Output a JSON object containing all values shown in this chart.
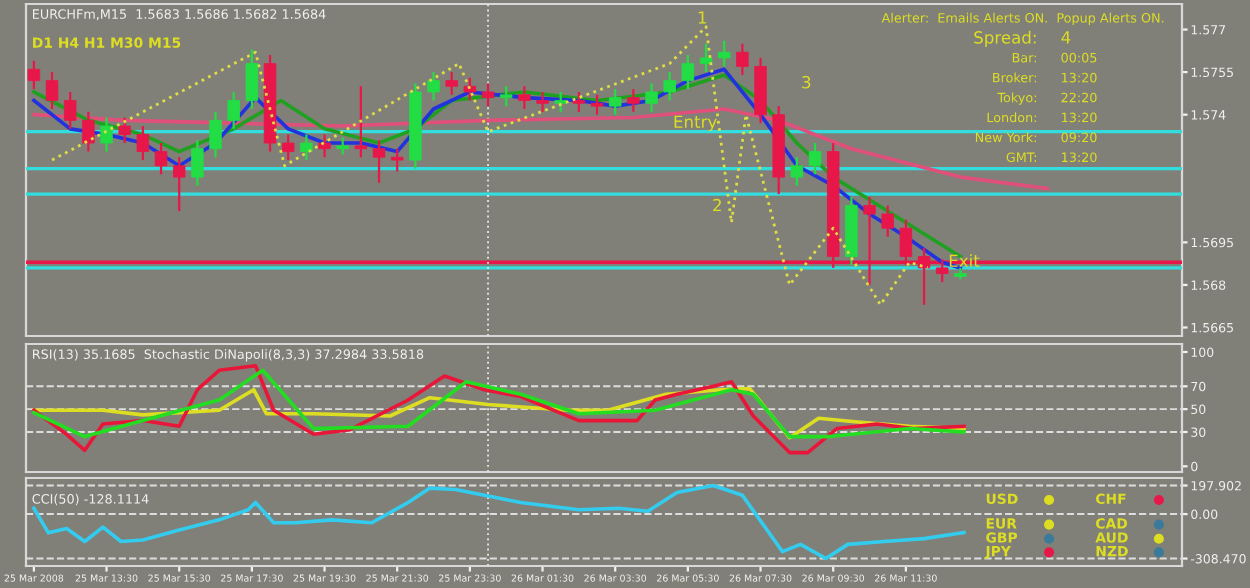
{
  "chart_data": [
    {
      "type": "candlestick",
      "title": "EURCHFm,M15  1.5683 1.5686 1.5682 1.5684",
      "x": [
        "2008-03-25T11:30",
        "2008-03-25T12:00",
        "2008-03-25T12:30",
        "2008-03-25T13:00",
        "2008-03-25T13:30",
        "2008-03-25T14:00",
        "2008-03-25T14:30",
        "2008-03-25T15:00",
        "2008-03-25T15:30",
        "2008-03-25T16:00",
        "2008-03-25T16:30",
        "2008-03-25T17:00",
        "2008-03-25T17:30",
        "2008-03-25T18:00",
        "2008-03-25T18:30",
        "2008-03-25T19:00",
        "2008-03-25T19:30",
        "2008-03-25T20:00",
        "2008-03-25T20:30",
        "2008-03-25T21:00",
        "2008-03-25T21:30",
        "2008-03-25T22:00",
        "2008-03-25T22:30",
        "2008-03-25T23:00",
        "2008-03-25T23:30",
        "2008-03-26T00:00",
        "2008-03-26T00:30",
        "2008-03-26T01:00",
        "2008-03-26T01:30",
        "2008-03-26T02:00",
        "2008-03-26T02:30",
        "2008-03-26T03:00",
        "2008-03-26T03:30",
        "2008-03-26T04:00",
        "2008-03-26T04:30",
        "2008-03-26T05:00",
        "2008-03-26T05:30",
        "2008-03-26T06:00",
        "2008-03-26T06:30",
        "2008-03-26T07:00",
        "2008-03-26T07:30",
        "2008-03-26T08:00",
        "2008-03-26T08:30",
        "2008-03-26T09:00",
        "2008-03-26T09:30",
        "2008-03-26T10:00",
        "2008-03-26T10:30",
        "2008-03-26T11:00",
        "2008-03-26T11:30",
        "2008-03-26T12:00",
        "2008-03-26T12:30",
        "2008-03-26T13:00"
      ],
      "ohlc": [
        [
          1.5756,
          1.5759,
          1.5749,
          1.5752
        ],
        [
          1.5752,
          1.5755,
          1.5742,
          1.5745
        ],
        [
          1.5745,
          1.5748,
          1.5735,
          1.5738
        ],
        [
          1.5738,
          1.5741,
          1.5727,
          1.573
        ],
        [
          1.573,
          1.5739,
          1.5727,
          1.5736
        ],
        [
          1.5736,
          1.5739,
          1.573,
          1.5733
        ],
        [
          1.5733,
          1.5736,
          1.5724,
          1.5727
        ],
        [
          1.5727,
          1.573,
          1.5719,
          1.5722
        ],
        [
          1.5722,
          1.5725,
          1.5706,
          1.5718
        ],
        [
          1.5718,
          1.5731,
          1.5715,
          1.5728
        ],
        [
          1.5728,
          1.5741,
          1.5725,
          1.5738
        ],
        [
          1.5738,
          1.5748,
          1.5735,
          1.5745
        ],
        [
          1.5745,
          1.5763,
          1.5742,
          1.5758
        ],
        [
          1.5758,
          1.5761,
          1.5727,
          1.573
        ],
        [
          1.573,
          1.5733,
          1.5724,
          1.5727
        ],
        [
          1.5727,
          1.5733,
          1.5724,
          1.573
        ],
        [
          1.573,
          1.5733,
          1.5725,
          1.5728
        ],
        [
          1.5728,
          1.5732,
          1.5726,
          1.5729
        ],
        [
          1.5729,
          1.575,
          1.5725,
          1.5728
        ],
        [
          1.5728,
          1.5731,
          1.5716,
          1.5725
        ],
        [
          1.5725,
          1.5728,
          1.572,
          1.5724
        ],
        [
          1.5724,
          1.5751,
          1.5721,
          1.5748
        ],
        [
          1.5748,
          1.5755,
          1.5745,
          1.5752
        ],
        [
          1.5752,
          1.5755,
          1.5747,
          1.575
        ],
        [
          1.575,
          1.5753,
          1.5745,
          1.5748
        ],
        [
          1.5748,
          1.5751,
          1.5743,
          1.5746
        ],
        [
          1.5746,
          1.575,
          1.5743,
          1.5747
        ],
        [
          1.5747,
          1.575,
          1.5742,
          1.5745
        ],
        [
          1.5745,
          1.5748,
          1.5741,
          1.5744
        ],
        [
          1.5744,
          1.5748,
          1.5741,
          1.5745
        ],
        [
          1.5745,
          1.5748,
          1.5741,
          1.5744
        ],
        [
          1.5744,
          1.5747,
          1.574,
          1.5743
        ],
        [
          1.5743,
          1.5749,
          1.574,
          1.5746
        ],
        [
          1.5746,
          1.5749,
          1.5741,
          1.5744
        ],
        [
          1.5744,
          1.5751,
          1.5741,
          1.5748
        ],
        [
          1.5748,
          1.5755,
          1.5745,
          1.5752
        ],
        [
          1.5752,
          1.5761,
          1.5749,
          1.5758
        ],
        [
          1.5758,
          1.5765,
          1.5755,
          1.576
        ],
        [
          1.576,
          1.5766,
          1.5757,
          1.5762
        ],
        [
          1.5762,
          1.5765,
          1.5754,
          1.5757
        ],
        [
          1.5757,
          1.576,
          1.5737,
          1.574
        ],
        [
          1.574,
          1.5743,
          1.5712,
          1.5718
        ],
        [
          1.5718,
          1.5725,
          1.5715,
          1.5722
        ],
        [
          1.5722,
          1.573,
          1.5719,
          1.5727
        ],
        [
          1.5727,
          1.573,
          1.5686,
          1.569
        ],
        [
          1.569,
          1.5711,
          1.5687,
          1.5708
        ],
        [
          1.5708,
          1.5711,
          1.568,
          1.5705
        ],
        [
          1.5705,
          1.5708,
          1.5697,
          1.57
        ],
        [
          1.57,
          1.5703,
          1.5687,
          1.569
        ],
        [
          1.569,
          1.5693,
          1.5673,
          1.5686
        ],
        [
          1.5686,
          1.5689,
          1.5681,
          1.5684
        ],
        [
          1.5683,
          1.5686,
          1.5682,
          1.5684
        ]
      ],
      "colors": [
        "#e8174a",
        "#e8174a",
        "#e8174a",
        "#e8174a",
        "#22dd44",
        "#e8174a",
        "#e8174a",
        "#e8174a",
        "#e8174a",
        "#22dd44",
        "#22dd44",
        "#22dd44",
        "#22dd44",
        "#e8174a",
        "#e8174a",
        "#22dd44",
        "#e8174a",
        "#22dd44",
        "#e8174a",
        "#e8174a",
        "#e8174a",
        "#22dd44",
        "#22dd44",
        "#e8174a",
        "#e8174a",
        "#e8174a",
        "#22dd44",
        "#e8174a",
        "#e8174a",
        "#22dd44",
        "#e8174a",
        "#e8174a",
        "#22dd44",
        "#e8174a",
        "#22dd44",
        "#22dd44",
        "#22dd44",
        "#22dd44",
        "#22dd44",
        "#e8174a",
        "#e8174a",
        "#e8174a",
        "#22dd44",
        "#22dd44",
        "#e8174a",
        "#22dd44",
        "#e8174a",
        "#e8174a",
        "#e8174a",
        "#e8174a",
        "#e8174a",
        "#22dd44"
      ],
      "series": [
        {
          "type": "line",
          "color": "#e0507a",
          "x": [
            "2008-03-25T11:30",
            "2008-03-25T14:00",
            "2008-03-25T17:00",
            "2008-03-25T20:00",
            "2008-03-26T00:00",
            "2008-03-26T04:00",
            "2008-03-26T06:30",
            "2008-03-26T08:00",
            "2008-03-26T10:00",
            "2008-03-26T13:00",
            "2008-03-26T15:24"
          ],
          "values": [
            1.574,
            1.5738,
            1.5737,
            1.5736,
            1.5738,
            1.5739,
            1.5742,
            1.5738,
            1.5728,
            1.5718,
            1.5714
          ]
        },
        {
          "type": "line",
          "color": "#dddd44",
          "line_style": "dotted",
          "x": [
            "2008-03-25T12:00",
            "2008-03-25T17:36",
            "2008-03-25T18:24",
            "2008-03-25T23:12",
            "2008-03-26T00:00",
            "2008-03-26T05:00",
            "2008-03-26T06:00",
            "2008-03-26T06:42",
            "2008-03-26T07:06",
            "2008-03-26T08:18",
            "2008-03-26T09:30",
            "2008-03-26T10:48",
            "2008-03-26T11:36",
            "2008-03-26T12:06"
          ],
          "values": [
            1.5724,
            1.5762,
            1.5722,
            1.5758,
            1.5734,
            1.5758,
            1.5771,
            1.5702,
            1.574,
            1.568,
            1.57,
            1.5673,
            1.5688,
            1.5686
          ]
        },
        {
          "type": "line",
          "color": "#20a020",
          "x": [
            "2008-03-25T11:30",
            "2008-03-25T13:00",
            "2008-03-25T14:30",
            "2008-03-25T15:30",
            "2008-03-25T17:00",
            "2008-03-25T18:18",
            "2008-03-25T19:30",
            "2008-03-25T21:00",
            "2008-03-25T22:00",
            "2008-03-25T23:00",
            "2008-03-26T01:00",
            "2008-03-26T03:00",
            "2008-03-26T05:00",
            "2008-03-26T06:30",
            "2008-03-26T07:30",
            "2008-03-26T08:30",
            "2008-03-26T09:30",
            "2008-03-26T10:30",
            "2008-03-26T11:30",
            "2008-03-26T13:00"
          ],
          "values": [
            1.5748,
            1.5738,
            1.5733,
            1.5727,
            1.5735,
            1.5745,
            1.5735,
            1.573,
            1.5735,
            1.5745,
            1.5748,
            1.5745,
            1.5748,
            1.5754,
            1.5745,
            1.573,
            1.5718,
            1.571,
            1.5702,
            1.569
          ]
        },
        {
          "type": "line",
          "color": "#2233dd",
          "x": [
            "2008-03-25T11:30",
            "2008-03-25T12:30",
            "2008-03-25T13:30",
            "2008-03-25T14:30",
            "2008-03-25T15:30",
            "2008-03-25T16:30",
            "2008-03-25T17:36",
            "2008-03-25T18:30",
            "2008-03-25T19:30",
            "2008-03-25T20:30",
            "2008-03-25T21:30",
            "2008-03-25T22:30",
            "2008-03-25T23:30",
            "2008-03-26T01:00",
            "2008-03-26T02:30",
            "2008-03-26T03:30",
            "2008-03-26T04:30",
            "2008-03-26T05:30",
            "2008-03-26T06:30",
            "2008-03-26T07:30",
            "2008-03-26T08:30",
            "2008-03-26T09:30",
            "2008-03-26T10:30",
            "2008-03-26T11:30",
            "2008-03-26T12:30",
            "2008-03-26T13:00"
          ],
          "values": [
            1.5745,
            1.5735,
            1.5733,
            1.573,
            1.5722,
            1.573,
            1.5746,
            1.5735,
            1.573,
            1.573,
            1.5727,
            1.5742,
            1.5748,
            1.5746,
            1.5745,
            1.5743,
            1.5745,
            1.5752,
            1.5756,
            1.574,
            1.5722,
            1.5715,
            1.5705,
            1.5697,
            1.5688,
            1.5686
          ]
        }
      ],
      "xlim": [
        "2008-03-25T11:17",
        "2008-03-26T19:06"
      ],
      "ylim": [
        1.5662,
        1.5779
      ],
      "yticks": [
        1.5665,
        1.568,
        1.5695,
        1.574,
        1.5755,
        1.577
      ],
      "tick_labels": "y",
      "ref_lines": [
        {
          "axis": "y",
          "value": 1.5734,
          "color": "#33dddd"
        },
        {
          "axis": "y",
          "value": 1.5721,
          "color": "#33dddd"
        },
        {
          "axis": "y",
          "value": 1.5712,
          "color": "#33dddd"
        },
        {
          "axis": "y",
          "value": 1.5688,
          "color": "#e8174a"
        },
        {
          "axis": "y",
          "value": 1.5686,
          "color": "#33dddd"
        },
        {
          "axis": "x",
          "value": "2008-03-26T00:00",
          "color": "#dddddd",
          "line_style": "dotted"
        }
      ],
      "annotations": [
        "D1 H4 H1 M30 M15",
        "Alerter:  Emails Alerts ON.  Popup Alerts ON.",
        "Spread:",
        "4",
        "Bar:",
        "00:05",
        "Broker:",
        "13:20",
        "Tokyo:",
        "22:20",
        "London:",
        "13:20",
        "New York:",
        "09:20",
        "GMT:",
        "13:20",
        "1",
        "2",
        "3",
        {
          "text": "Entry",
          "x": "2008-03-26T05:42",
          "y": 1.5737
        },
        {
          "text": "Exit",
          "x": "2008-03-26T13:06",
          "y": 1.5688
        }
      ]
    },
    {
      "type": "line",
      "title": "RSI(13) 35.1685  Stochastic DiNapoli(8,3,3) 37.2984 33.5818",
      "series": [
        {
          "color": "#dddd22",
          "x": [
            "2008-03-25T11:30",
            "2008-03-25T13:24",
            "2008-03-25T14:30",
            "2008-03-25T16:36",
            "2008-03-25T17:33",
            "2008-03-25T17:54",
            "2008-03-25T19:12",
            "2008-03-25T21:18",
            "2008-03-25T22:24",
            "2008-03-26T00:00",
            "2008-03-26T02:12",
            "2008-03-26T03:18",
            "2008-03-26T04:54",
            "2008-03-26T06:24",
            "2008-03-26T07:12",
            "2008-03-26T08:18",
            "2008-03-26T09:06",
            "2008-03-26T10:06",
            "2008-03-26T11:36",
            "2008-03-26T13:06"
          ],
          "values": [
            49,
            49,
            45,
            49,
            67,
            46,
            46,
            44,
            60,
            54,
            49,
            49,
            63,
            67,
            68,
            25,
            42,
            39,
            35,
            33
          ]
        },
        {
          "color": "#e8173a",
          "x": [
            "2008-03-25T11:30",
            "2008-03-25T12:24",
            "2008-03-25T12:54",
            "2008-03-25T13:24",
            "2008-03-25T14:30",
            "2008-03-25T15:30",
            "2008-03-25T16:00",
            "2008-03-25T16:36",
            "2008-03-25T17:36",
            "2008-03-25T18:06",
            "2008-03-25T19:12",
            "2008-03-25T20:12",
            "2008-03-25T21:48",
            "2008-03-25T22:48",
            "2008-03-25T23:54",
            "2008-03-26T00:54",
            "2008-03-26T02:30",
            "2008-03-26T04:06",
            "2008-03-26T04:36",
            "2008-03-26T05:12",
            "2008-03-26T06:12",
            "2008-03-26T06:42",
            "2008-03-26T07:18",
            "2008-03-26T08:18",
            "2008-03-26T08:48",
            "2008-03-26T09:36",
            "2008-03-26T10:42",
            "2008-03-26T11:42",
            "2008-03-26T13:06"
          ],
          "values": [
            49,
            28,
            14,
            37,
            40,
            35,
            67,
            84,
            88,
            49,
            28,
            32,
            58,
            79,
            67,
            61,
            40,
            40,
            58,
            63,
            70,
            74,
            44,
            12,
            12,
            33,
            37,
            33,
            35
          ]
        },
        {
          "color": "#22dd22",
          "x": [
            "2008-03-25T11:30",
            "2008-03-25T12:54",
            "2008-03-25T14:30",
            "2008-03-25T16:36",
            "2008-03-25T17:48",
            "2008-03-25T19:12",
            "2008-03-25T21:48",
            "2008-03-25T23:24",
            "2008-03-26T00:54",
            "2008-03-26T02:30",
            "2008-03-26T04:36",
            "2008-03-26T06:42",
            "2008-03-26T07:18",
            "2008-03-26T08:18",
            "2008-03-26T09:24",
            "2008-03-26T11:36",
            "2008-03-26T13:06"
          ],
          "values": [
            47,
            26,
            40,
            58,
            84,
            33,
            35,
            74,
            63,
            46,
            49,
            67,
            63,
            26,
            26,
            33,
            30
          ]
        }
      ],
      "xlim": [
        "2008-03-25T11:17",
        "2008-03-26T19:06"
      ],
      "ylim": [
        -5,
        107
      ],
      "yticks": [
        0,
        30,
        50,
        70,
        100
      ],
      "tick_labels": "y",
      "ref_lines": [
        {
          "axis": "y",
          "value": 70,
          "color": "#dddddd",
          "line_style": "dashed"
        },
        {
          "axis": "y",
          "value": 50,
          "color": "#dddddd",
          "line_style": "dashed"
        },
        {
          "axis": "y",
          "value": 30,
          "color": "#dddddd",
          "line_style": "dashed"
        },
        {
          "axis": "x",
          "value": "2008-03-26T00:00",
          "color": "#dddddd",
          "line_style": "dotted"
        }
      ]
    },
    {
      "type": "line",
      "title": "CCI(50) -128.1114",
      "series": [
        {
          "color": "#33ccee",
          "x": [
            "2008-03-25T11:30",
            "2008-03-25T11:54",
            "2008-03-25T12:24",
            "2008-03-25T12:54",
            "2008-03-25T13:24",
            "2008-03-25T13:54",
            "2008-03-25T14:30",
            "2008-03-25T15:30",
            "2008-03-25T16:36",
            "2008-03-25T17:24",
            "2008-03-25T17:36",
            "2008-03-25T18:06",
            "2008-03-25T18:42",
            "2008-03-25T19:42",
            "2008-03-25T20:48",
            "2008-03-25T21:48",
            "2008-03-25T22:24",
            "2008-03-25T23:06",
            "2008-03-25T23:54",
            "2008-03-26T00:54",
            "2008-03-26T02:30",
            "2008-03-26T03:36",
            "2008-03-26T04:24",
            "2008-03-26T05:12",
            "2008-03-26T06:12",
            "2008-03-26T07:00",
            "2008-03-26T08:06",
            "2008-03-26T08:36",
            "2008-03-26T09:18",
            "2008-03-26T09:54",
            "2008-03-26T10:54",
            "2008-03-26T12:00",
            "2008-03-26T13:06"
          ],
          "values": [
            40,
            -130,
            -100,
            -190,
            -90,
            -190,
            -180,
            -110,
            -40,
            30,
            80,
            -60,
            -60,
            -40,
            -60,
            80,
            180,
            170,
            130,
            80,
            30,
            40,
            20,
            150,
            198,
            130,
            -260,
            -210,
            -308,
            -210,
            -190,
            -170,
            -128
          ]
        }
      ],
      "xlim": [
        "2008-03-25T11:17",
        "2008-03-26T19:06"
      ],
      "ylim": [
        -360,
        250
      ],
      "yticks": [
        {
          "value": 197.902,
          "label": "197.902"
        },
        {
          "value": 0,
          "label": "0.00"
        },
        {
          "value": -308.47,
          "label": "-308.470"
        }
      ],
      "xticks": [
        {
          "value": "2008-03-25T11:30",
          "label": "25 Mar 2008"
        },
        {
          "value": "2008-03-25T13:30",
          "label": "25 Mar 13:30"
        },
        {
          "value": "2008-03-25T15:30",
          "label": "25 Mar 15:30"
        },
        {
          "value": "2008-03-25T17:30",
          "label": "25 Mar 17:30"
        },
        {
          "value": "2008-03-25T19:30",
          "label": "25 Mar 19:30"
        },
        {
          "value": "2008-03-25T21:30",
          "label": "25 Mar 21:30"
        },
        {
          "value": "2008-03-25T23:30",
          "label": "25 Mar 23:30"
        },
        {
          "value": "2008-03-26T01:30",
          "label": "26 Mar 01:30"
        },
        {
          "value": "2008-03-26T03:30",
          "label": "26 Mar 03:30"
        },
        {
          "value": "2008-03-26T05:30",
          "label": "26 Mar 05:30"
        },
        {
          "value": "2008-03-26T07:30",
          "label": "26 Mar 07:30"
        },
        {
          "value": "2008-03-26T09:30",
          "label": "26 Mar 09:30"
        },
        {
          "value": "2008-03-26T11:30",
          "label": "26 Mar 11:30"
        }
      ],
      "ref_lines": [
        {
          "axis": "y",
          "value": 197.902,
          "color": "#dddddd",
          "line_style": "dashed"
        },
        {
          "axis": "y",
          "value": 0,
          "color": "#dddddd",
          "line_style": "dashed"
        },
        {
          "axis": "y",
          "value": -308.47,
          "color": "#dddddd",
          "line_style": "dashed"
        },
        {
          "axis": "x",
          "value": "2008-03-26T00:00",
          "color": "#dddddd",
          "line_style": "dotted"
        }
      ],
      "annotations": [
        "USD",
        "CHF",
        "EUR",
        "CAD",
        "GBP",
        "AUD",
        "JPY",
        "NZD"
      ]
    }
  ]
}
